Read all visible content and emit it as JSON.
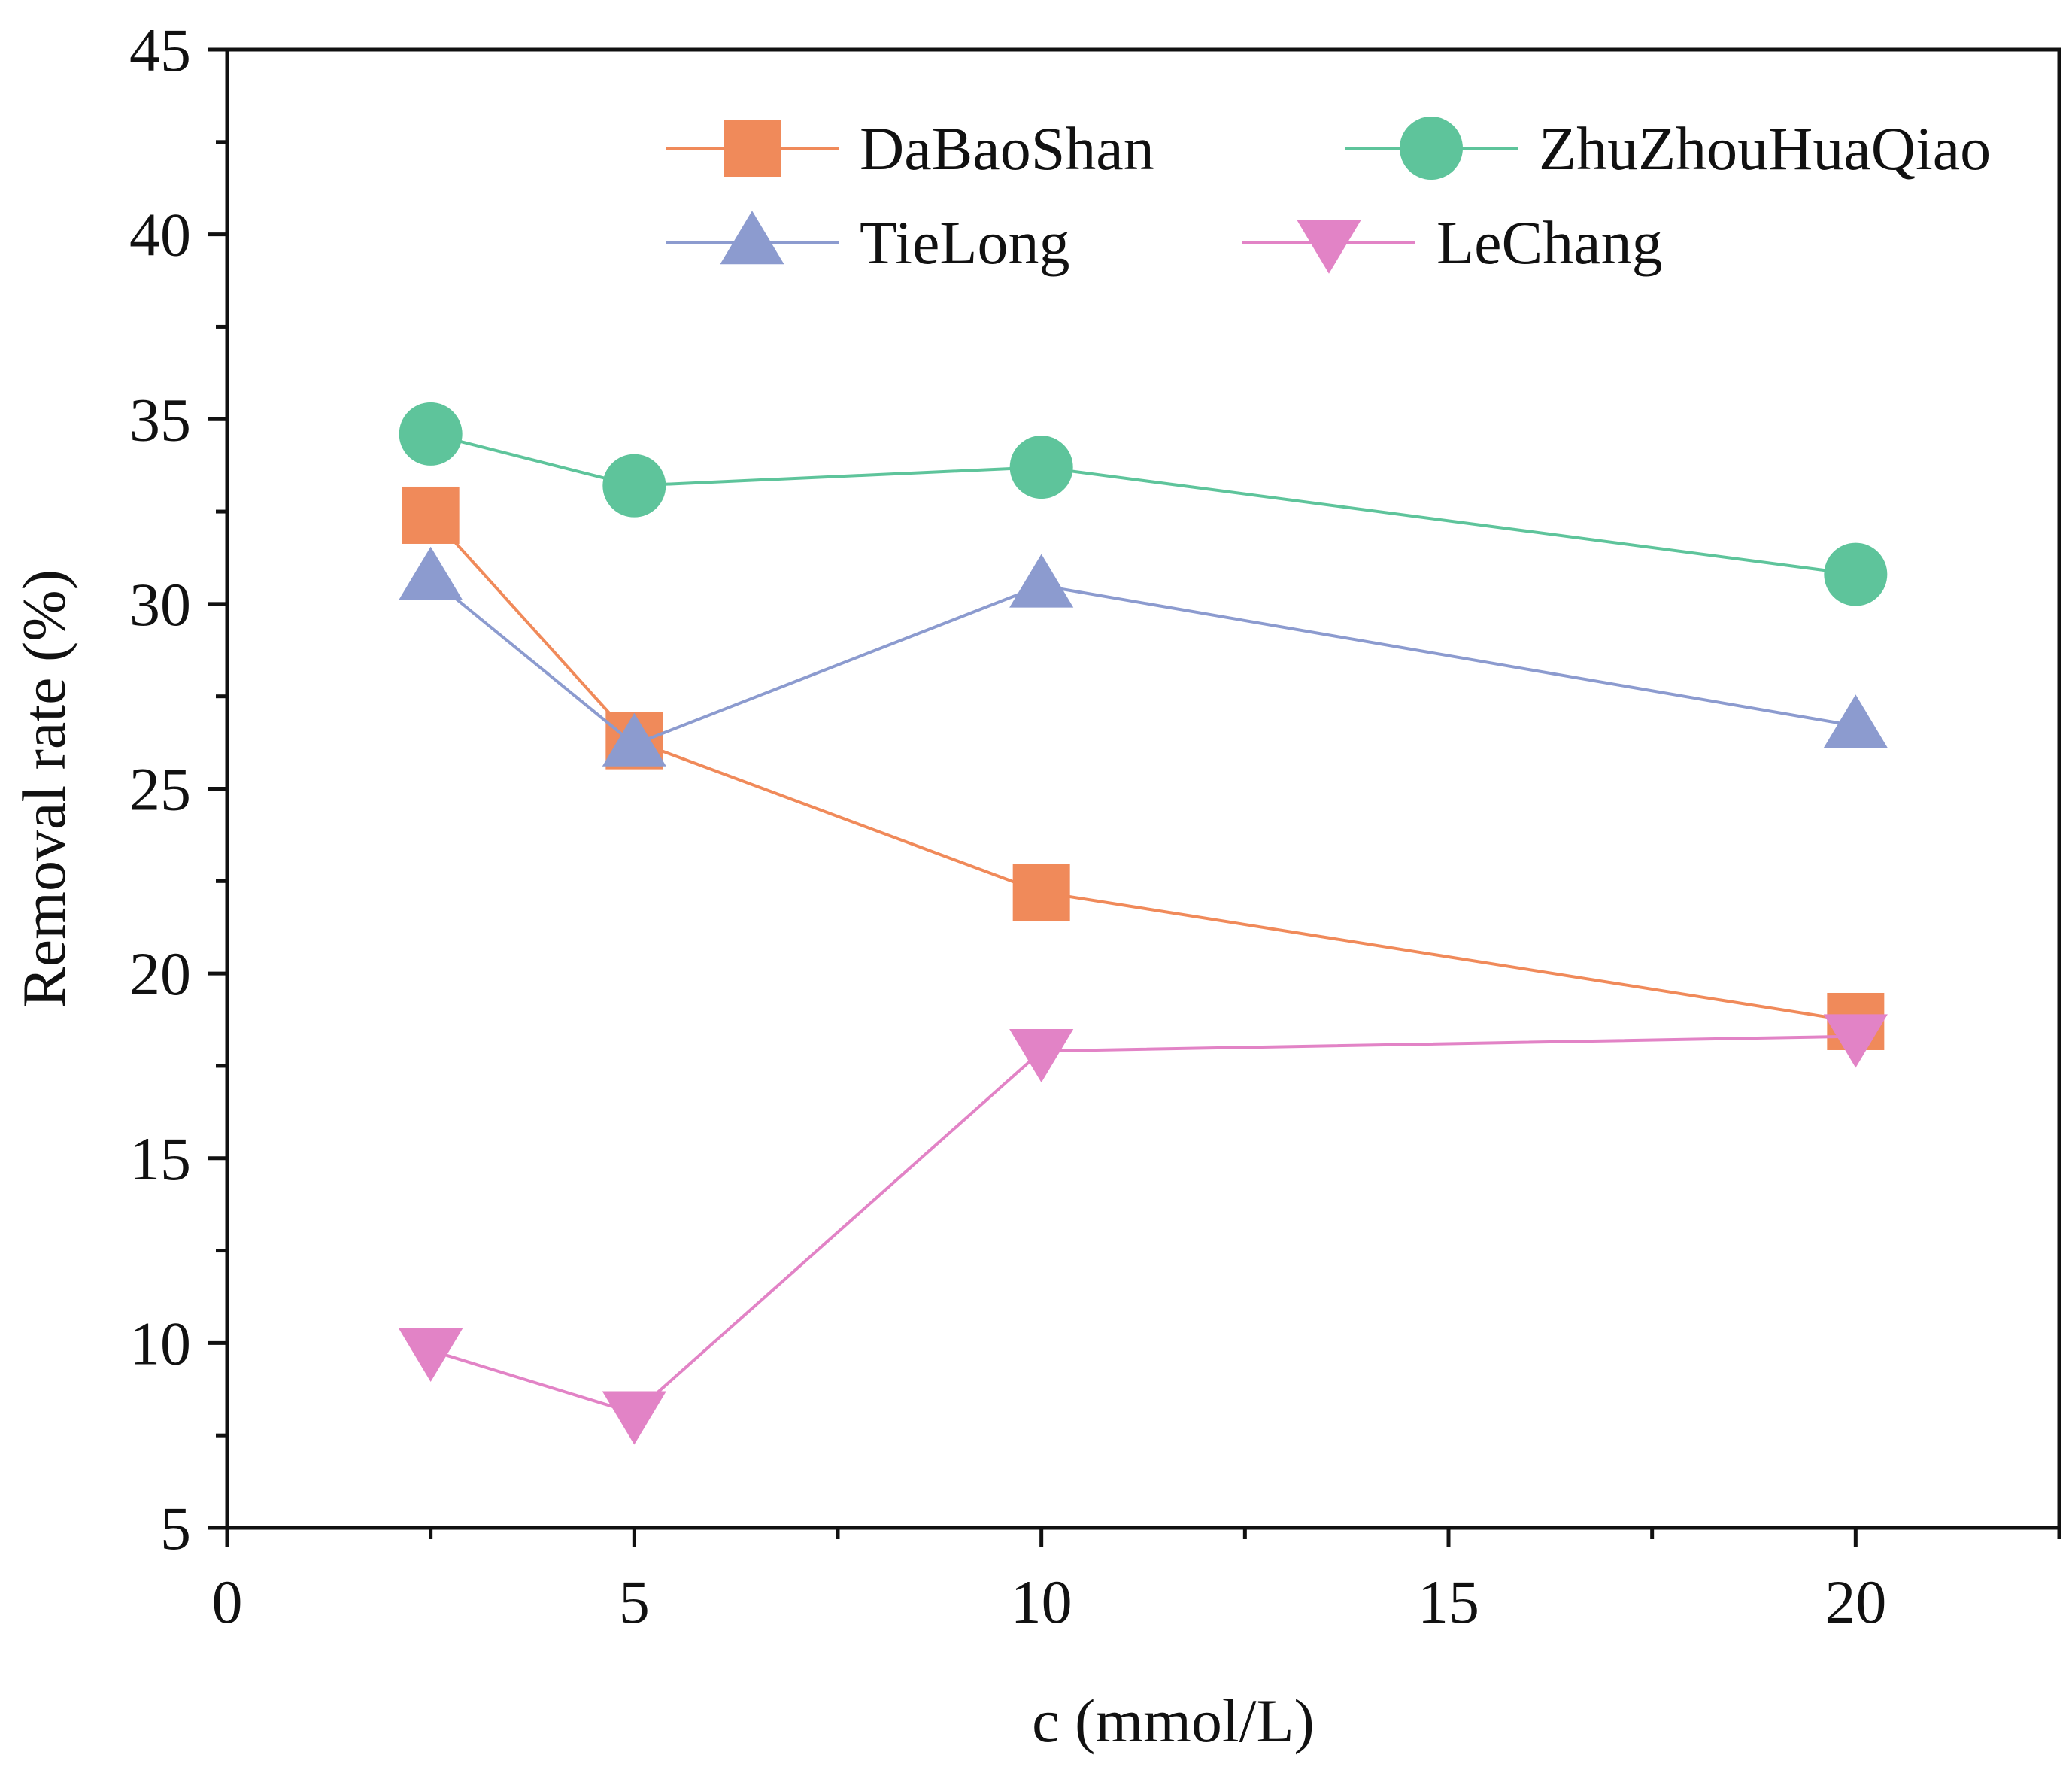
{
  "chart_data": {
    "type": "line",
    "title": "",
    "xlabel": "c (mmol/L)",
    "ylabel": "Removal rate (%)",
    "xlim": [
      0,
      22.5
    ],
    "ylim": [
      5,
      45
    ],
    "xticks": [
      0,
      5,
      10,
      15,
      20
    ],
    "yticks": [
      5,
      10,
      15,
      20,
      25,
      30,
      35,
      40,
      45
    ],
    "grid": false,
    "legend_position": "top-right",
    "x": [
      2.5,
      5,
      10,
      20
    ],
    "series": [
      {
        "name": "DaBaoShan",
        "values": [
          32.4,
          26.3,
          22.2,
          18.7
        ],
        "color": "#f08a5a",
        "marker": "square"
      },
      {
        "name": "ZhuZhouHuaQiao",
        "values": [
          34.6,
          33.2,
          33.7,
          30.8
        ],
        "color": "#5ec49b",
        "marker": "circle"
      },
      {
        "name": "TieLong",
        "values": [
          30.7,
          26.2,
          30.5,
          26.7
        ],
        "color": "#8c9bcf",
        "marker": "triangle-up"
      },
      {
        "name": "LeChang",
        "values": [
          9.8,
          8.1,
          17.9,
          18.3
        ],
        "color": "#e283c6",
        "marker": "triangle-down"
      }
    ]
  }
}
